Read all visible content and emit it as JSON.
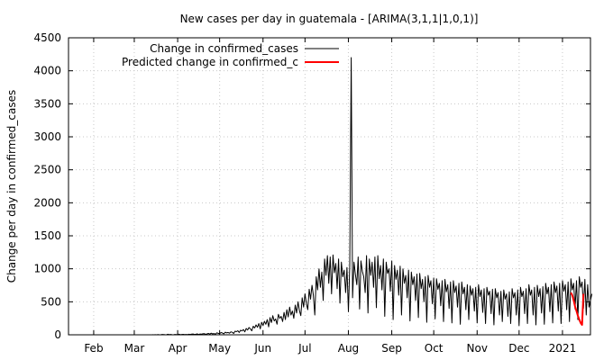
{
  "chart_data": {
    "type": "line",
    "title": "New cases per day in guatemala -  [ARIMA(3,1,1|1,0,1)]",
    "xlabel": "",
    "ylabel": "Change per day in confirmed_cases",
    "ylim": [
      0,
      4500
    ],
    "xlim": [
      "2020-01-14",
      "2021-01-21"
    ],
    "yticks": [
      0,
      500,
      1000,
      1500,
      2000,
      2500,
      3000,
      3500,
      4000,
      4500
    ],
    "xticks": [
      {
        "label": "Feb",
        "date": "2020-02-01"
      },
      {
        "label": "Mar",
        "date": "2020-03-01"
      },
      {
        "label": "Apr",
        "date": "2020-04-01"
      },
      {
        "label": "May",
        "date": "2020-05-01"
      },
      {
        "label": "Jun",
        "date": "2020-06-01"
      },
      {
        "label": "Jul",
        "date": "2020-07-01"
      },
      {
        "label": "Aug",
        "date": "2020-08-01"
      },
      {
        "label": "Sep",
        "date": "2020-09-01"
      },
      {
        "label": "Oct",
        "date": "2020-10-01"
      },
      {
        "label": "Nov",
        "date": "2020-11-01"
      },
      {
        "label": "Dec",
        "date": "2020-12-01"
      },
      {
        "label": "2021",
        "date": "2021-01-01"
      }
    ],
    "grid": true,
    "legend_position": "top-left",
    "series": [
      {
        "name": "Change in confirmed_cases",
        "color": "#000000",
        "start_date": "2020-03-14",
        "values": [
          1,
          0,
          2,
          0,
          3,
          0,
          2,
          5,
          4,
          1,
          0,
          8,
          3,
          5,
          2,
          0,
          6,
          4,
          3,
          9,
          2,
          5,
          7,
          4,
          6,
          3,
          8,
          5,
          10,
          12,
          6,
          8,
          14,
          4,
          12,
          9,
          15,
          18,
          7,
          13,
          20,
          11,
          25,
          14,
          19,
          9,
          30,
          22,
          18,
          34,
          27,
          15,
          40,
          29,
          36,
          24,
          45,
          38,
          20,
          55,
          48,
          62,
          35,
          70,
          58,
          80,
          45,
          95,
          72,
          110,
          88,
          60,
          130,
          104,
          150,
          115,
          170,
          90,
          190,
          140,
          205,
          160,
          230,
          120,
          260,
          185,
          290,
          210,
          240,
          160,
          310,
          250,
          280,
          200,
          340,
          230,
          380,
          270,
          420,
          300,
          360,
          250,
          450,
          330,
          500,
          370,
          290,
          560,
          420,
          620,
          470,
          380,
          690,
          540,
          750,
          600,
          300,
          880,
          680,
          1000,
          720,
          950,
          520,
          1150,
          900,
          1200,
          780,
          1180,
          620,
          1210,
          940,
          1080,
          700,
          1150,
          480,
          1100,
          880,
          980,
          640,
          1020,
          350,
          1050,
          4200,
          560,
          1100,
          920,
          760,
          1180,
          390,
          1120,
          960,
          880,
          640,
          1200,
          330,
          1150,
          900,
          1100,
          720,
          1180,
          410,
          1200,
          850,
          1050,
          680,
          1150,
          280,
          1100,
          930,
          1000,
          660,
          1120,
          230,
          1050,
          840,
          980,
          600,
          1040,
          300,
          1000,
          780,
          900,
          560,
          980,
          210,
          950,
          760,
          880,
          520,
          920,
          260,
          930,
          700,
          840,
          500,
          880,
          190,
          900,
          720,
          820,
          470,
          860,
          240,
          850,
          690,
          780,
          440,
          820,
          200,
          840,
          650,
          760,
          400,
          800,
          180,
          820,
          640,
          740,
          420,
          780,
          160,
          800,
          620,
          720,
          380,
          760,
          230,
          740,
          600,
          700,
          360,
          720,
          180,
          760,
          580,
          680,
          340,
          700,
          170,
          720,
          600,
          660,
          320,
          690,
          150,
          700,
          560,
          640,
          300,
          660,
          200,
          680,
          540,
          620,
          280,
          650,
          170,
          700,
          560,
          640,
          300,
          680,
          140,
          720,
          580,
          660,
          320,
          700,
          170,
          760,
          600,
          680,
          300,
          720,
          150,
          750,
          580,
          700,
          330,
          730,
          160,
          780,
          620,
          720,
          350,
          760,
          180,
          800,
          640,
          740,
          360,
          780,
          170,
          820,
          660,
          760,
          380,
          800,
          200,
          850,
          680,
          780,
          390,
          820,
          230,
          880,
          720,
          800,
          400,
          840,
          300,
          760,
          420,
          520,
          620
        ]
      },
      {
        "name": "Predicted change in confirmed_c",
        "color": "#ff0000",
        "start_date": "2021-01-07",
        "values": [
          640,
          600,
          520,
          430,
          360,
          290,
          230,
          180,
          150,
          620
        ]
      }
    ]
  }
}
